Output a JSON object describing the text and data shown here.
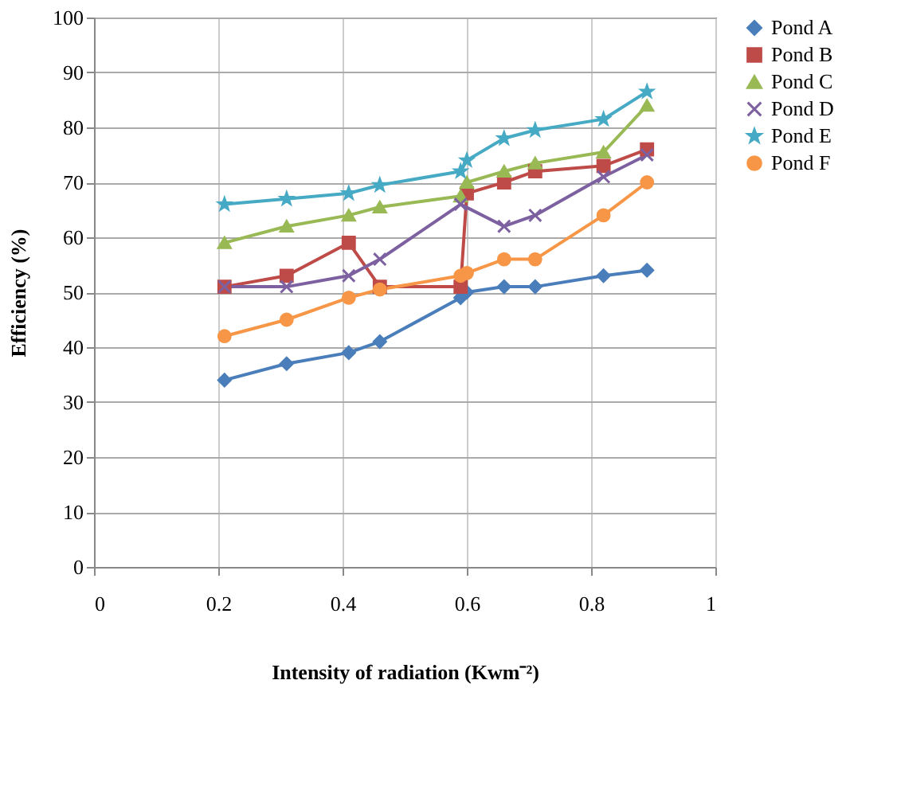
{
  "chart_data": {
    "type": "line",
    "xlabel": "Intensity of radiation (Kwm⁻²)",
    "ylabel": "Efficiency (%)",
    "xlim": [
      0,
      1
    ],
    "xticks": [
      0,
      0.2,
      0.4,
      0.6,
      0.8,
      1
    ],
    "ylim": [
      0,
      100
    ],
    "yticks": [
      0,
      10,
      20,
      30,
      40,
      50,
      60,
      70,
      80,
      90,
      100
    ],
    "grid": true,
    "legend": "right",
    "line_style": "solid",
    "x": [
      0.21,
      0.31,
      0.41,
      0.46,
      0.59,
      0.6,
      0.66,
      0.71,
      0.82,
      0.89
    ],
    "series": [
      {
        "name": "Pond A",
        "color": "#4a7ebb",
        "marker": "diamond",
        "values": [
          34,
          37,
          39,
          41,
          49,
          50,
          51,
          51,
          53,
          54
        ]
      },
      {
        "name": "Pond B",
        "color": "#be4b48",
        "marker": "square",
        "values": [
          51,
          53,
          59,
          51,
          51,
          68,
          70,
          72,
          73,
          76
        ]
      },
      {
        "name": "Pond C",
        "color": "#98b954",
        "marker": "triangle",
        "values": [
          59,
          62,
          64,
          65.5,
          67.5,
          70,
          72,
          73.5,
          75.5,
          84
        ]
      },
      {
        "name": "Pond D",
        "color": "#7d60a0",
        "marker": "cross",
        "x": [
          0.21,
          0.31,
          0.41,
          0.46,
          0.59,
          0.66,
          0.71,
          0.82,
          0.89
        ],
        "values": [
          51,
          51,
          53,
          56,
          66,
          62,
          64,
          71,
          75
        ]
      },
      {
        "name": "Pond E",
        "color": "#46aac5",
        "marker": "star",
        "values": [
          66,
          67,
          68,
          69.5,
          72,
          74,
          78,
          79.5,
          81.5,
          86.5
        ]
      },
      {
        "name": "Pond F",
        "color": "#f79646",
        "marker": "circle",
        "values": [
          42,
          45,
          49,
          50.5,
          53,
          53.5,
          56,
          56,
          64,
          70
        ]
      }
    ]
  }
}
